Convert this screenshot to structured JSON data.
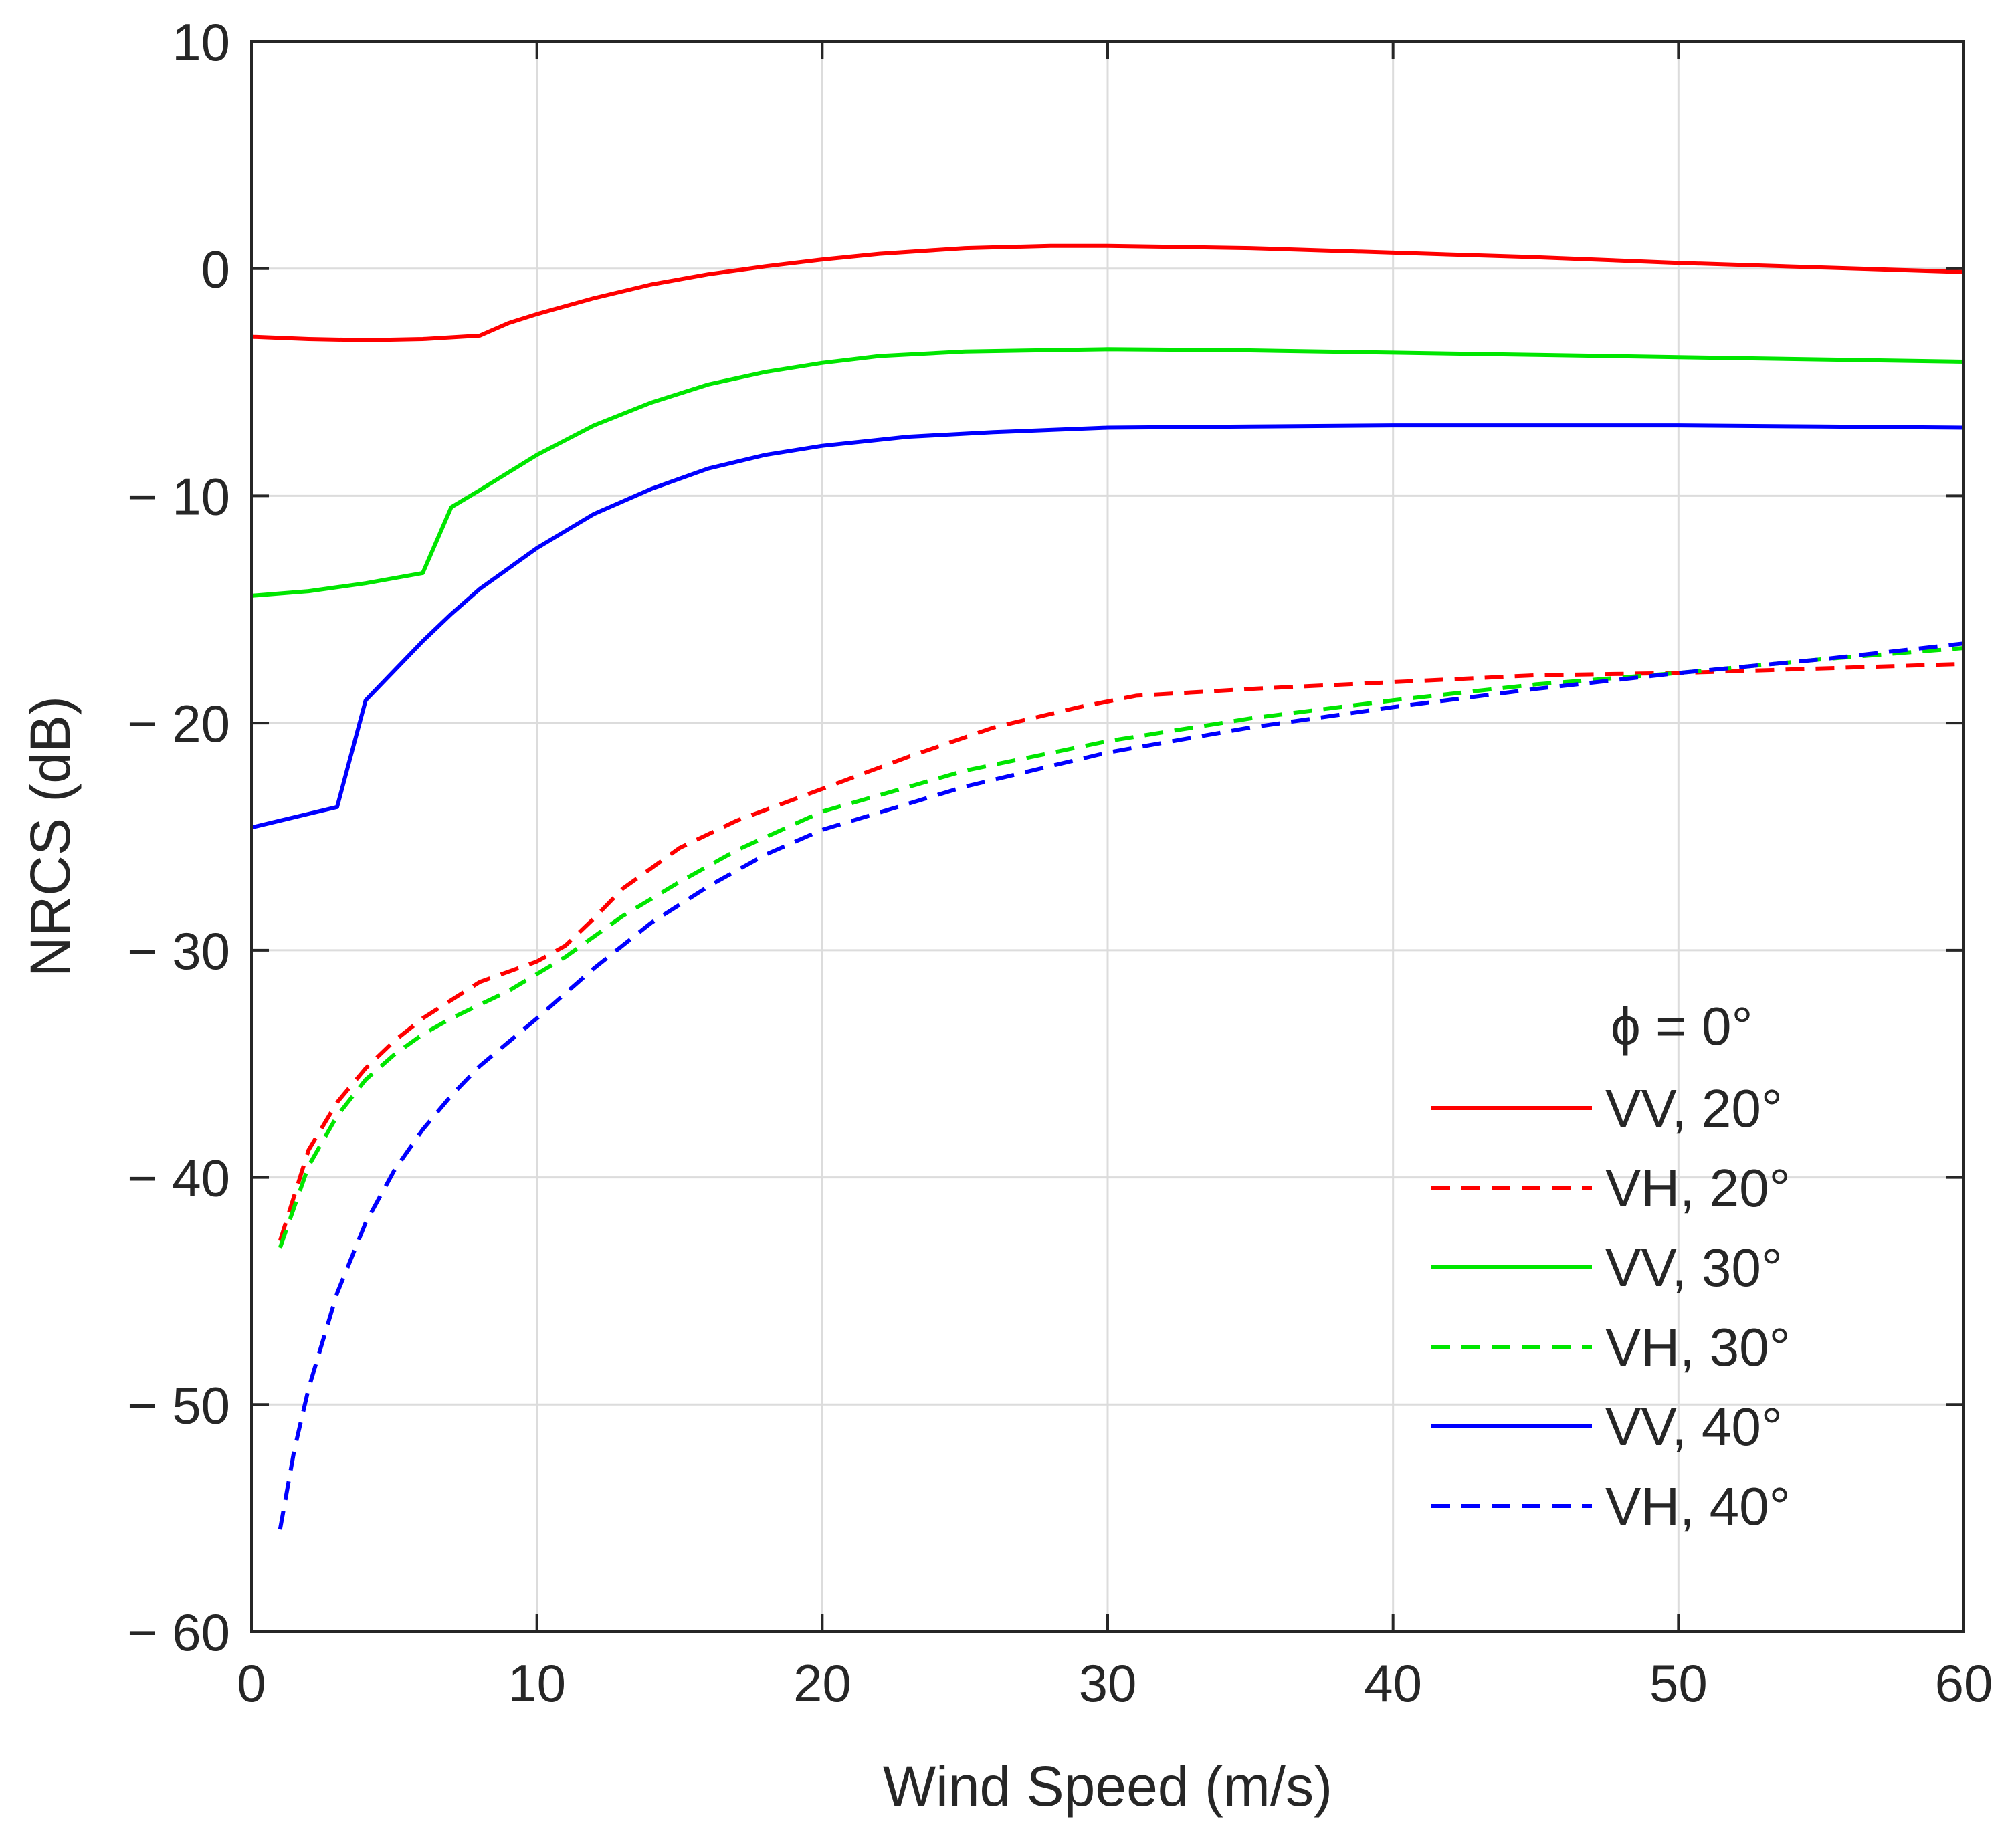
{
  "chart_data": {
    "type": "line",
    "title": "",
    "xlabel": "Wind Speed (m/s)",
    "ylabel": "NRCS (dB)",
    "xlim": [
      0,
      60
    ],
    "ylim": [
      -60,
      10
    ],
    "xticks": [
      0,
      10,
      20,
      30,
      40,
      50,
      60
    ],
    "xtick_labels": [
      "0",
      "10",
      "20",
      "30",
      "40",
      "50",
      "60"
    ],
    "yticks": [
      10,
      0,
      -10,
      -20,
      -30,
      -40,
      -50,
      -60
    ],
    "ytick_labels": [
      "10",
      "0",
      "− 10",
      "− 20",
      "− 30",
      "− 40",
      "− 50",
      "− 60"
    ],
    "grid": true,
    "legend_title": "ϕ = 0°",
    "legend_position": "lower-right",
    "series": [
      {
        "name": "VV, 20°",
        "color": "#ff0000",
        "dash": "solid",
        "x": [
          0,
          2,
          4,
          6,
          8,
          9,
          10,
          12,
          14,
          16,
          18,
          20,
          22,
          25,
          28,
          30,
          35,
          40,
          45,
          50,
          55,
          60
        ],
        "y": [
          -3.0,
          -3.1,
          -3.15,
          -3.1,
          -2.95,
          -2.4,
          -2.0,
          -1.3,
          -0.7,
          -0.25,
          0.1,
          0.4,
          0.65,
          0.9,
          1.0,
          1.0,
          0.9,
          0.7,
          0.5,
          0.25,
          0.05,
          -0.15
        ]
      },
      {
        "name": "VH, 20°",
        "color": "#ff0000",
        "dash": "dashed",
        "x": [
          1,
          2,
          3,
          4,
          5,
          6,
          8,
          10,
          11,
          12,
          13,
          15,
          17,
          20,
          23,
          26,
          29,
          31,
          35,
          40,
          45,
          50,
          55,
          60
        ],
        "y": [
          -42.8,
          -38.8,
          -36.7,
          -35.2,
          -34.0,
          -33.0,
          -31.4,
          -30.5,
          -29.8,
          -28.6,
          -27.3,
          -25.5,
          -24.3,
          -22.9,
          -21.5,
          -20.2,
          -19.3,
          -18.8,
          -18.5,
          -18.2,
          -17.9,
          -17.8,
          -17.6,
          -17.4
        ]
      },
      {
        "name": "VV, 30°",
        "color": "#00e600",
        "dash": "solid",
        "x": [
          0,
          2,
          4,
          6,
          7,
          8,
          10,
          12,
          14,
          16,
          18,
          20,
          22,
          25,
          30,
          35,
          40,
          45,
          50,
          55,
          60
        ],
        "y": [
          -14.4,
          -14.2,
          -13.85,
          -13.4,
          -10.5,
          -9.75,
          -8.2,
          -6.9,
          -5.9,
          -5.1,
          -4.55,
          -4.15,
          -3.85,
          -3.65,
          -3.55,
          -3.6,
          -3.7,
          -3.8,
          -3.9,
          -4.0,
          -4.1
        ]
      },
      {
        "name": "VH, 30°",
        "color": "#00e600",
        "dash": "dashed",
        "x": [
          1,
          2,
          3,
          4,
          5,
          6,
          7,
          9,
          11,
          12,
          13,
          15,
          17,
          20,
          25,
          30,
          35,
          40,
          45,
          50,
          55,
          60
        ],
        "y": [
          -43.1,
          -39.5,
          -37.3,
          -35.7,
          -34.6,
          -33.7,
          -33.0,
          -31.8,
          -30.3,
          -29.4,
          -28.5,
          -27.0,
          -25.6,
          -23.9,
          -22.1,
          -20.8,
          -19.8,
          -19.0,
          -18.3,
          -17.8,
          -17.2,
          -16.7
        ]
      },
      {
        "name": "VV, 40°",
        "color": "#0000ff",
        "dash": "solid",
        "x": [
          0,
          1,
          2,
          3,
          4,
          5,
          6,
          7,
          8,
          10,
          12,
          14,
          16,
          18,
          20,
          23,
          26,
          30,
          35,
          40,
          45,
          50,
          55,
          60
        ],
        "y": [
          -24.6,
          -24.3,
          -24.0,
          -23.7,
          -19.0,
          -17.7,
          -16.4,
          -15.2,
          -14.1,
          -12.3,
          -10.8,
          -9.7,
          -8.8,
          -8.2,
          -7.8,
          -7.4,
          -7.2,
          -7.0,
          -6.95,
          -6.9,
          -6.9,
          -6.9,
          -6.95,
          -7.0
        ]
      },
      {
        "name": "VH, 40°",
        "color": "#0000ff",
        "dash": "dashed",
        "x": [
          1,
          1.5,
          2,
          3,
          4,
          5,
          6,
          7,
          8,
          10,
          12,
          14,
          16,
          18,
          20,
          25,
          30,
          35,
          40,
          45,
          50,
          55,
          60
        ],
        "y": [
          -55.5,
          -52.0,
          -49.3,
          -45.1,
          -42.0,
          -39.7,
          -37.9,
          -36.4,
          -35.1,
          -33.0,
          -30.8,
          -28.8,
          -27.2,
          -25.8,
          -24.7,
          -22.8,
          -21.3,
          -20.2,
          -19.3,
          -18.5,
          -17.8,
          -17.2,
          -16.5
        ]
      }
    ]
  }
}
